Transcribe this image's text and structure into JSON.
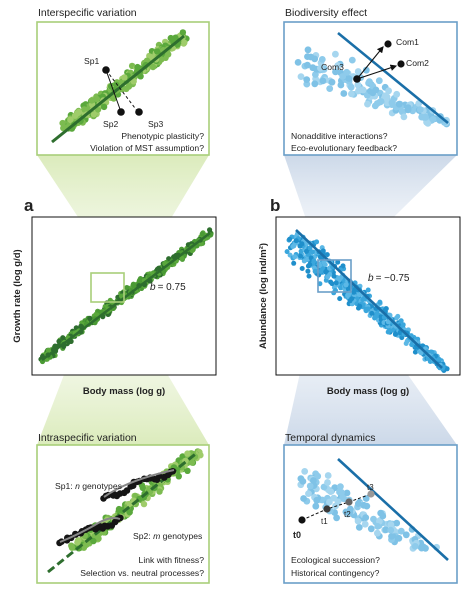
{
  "panels": {
    "a": {
      "letter": "a",
      "xlabel": "Body mass (log g)",
      "ylabel": "Growth rate (log g/d)",
      "slope": "= 0.75",
      "slope_symbol": "b"
    },
    "b": {
      "letter": "b",
      "xlabel": "Body mass (log g)",
      "ylabel": "Abundance (log ind/m²)",
      "slope": "= −0.75",
      "slope_symbol": "b"
    }
  },
  "insets": {
    "interspecific": {
      "title": "Interspecific variation",
      "species": [
        "Sp1",
        "Sp2",
        "Sp3"
      ],
      "questions": [
        "Phenotypic plasticity?",
        "Violation of MST assumption?"
      ]
    },
    "biodiversity": {
      "title": "Biodiversity effect",
      "communities": [
        "Com1",
        "Com2",
        "Com3"
      ],
      "questions": [
        "Nonadditive interactions?",
        "Eco-evolutionary feedback?"
      ]
    },
    "intraspecific": {
      "title": "Intraspecific variation",
      "genotype_labels": [
        "genotypes",
        "genotypes"
      ],
      "sp1_prefix": "Sp1: ",
      "sp1_n": "n",
      "sp2_prefix": "Sp2: ",
      "sp2_m": "m",
      "questions": [
        "Link with fitness?",
        "Selection vs. neutral processes?"
      ]
    },
    "temporal": {
      "title": "Temporal dynamics",
      "time_points": [
        "t0",
        "t1",
        "t2",
        "t3"
      ],
      "questions": [
        "Ecological succession?",
        "Historical contingency?"
      ]
    }
  },
  "colors": {
    "green_dark": "#2e6e2e",
    "green_pt": "#5aa83c",
    "green_light": "#9fcc6a",
    "green_frame": "#a8cf7a",
    "blue_line": "#1a6fa8",
    "blue_pt": "#3aa6dc",
    "blue_light": "#8ecbeb",
    "blue_frame": "#6a9ec8"
  }
}
